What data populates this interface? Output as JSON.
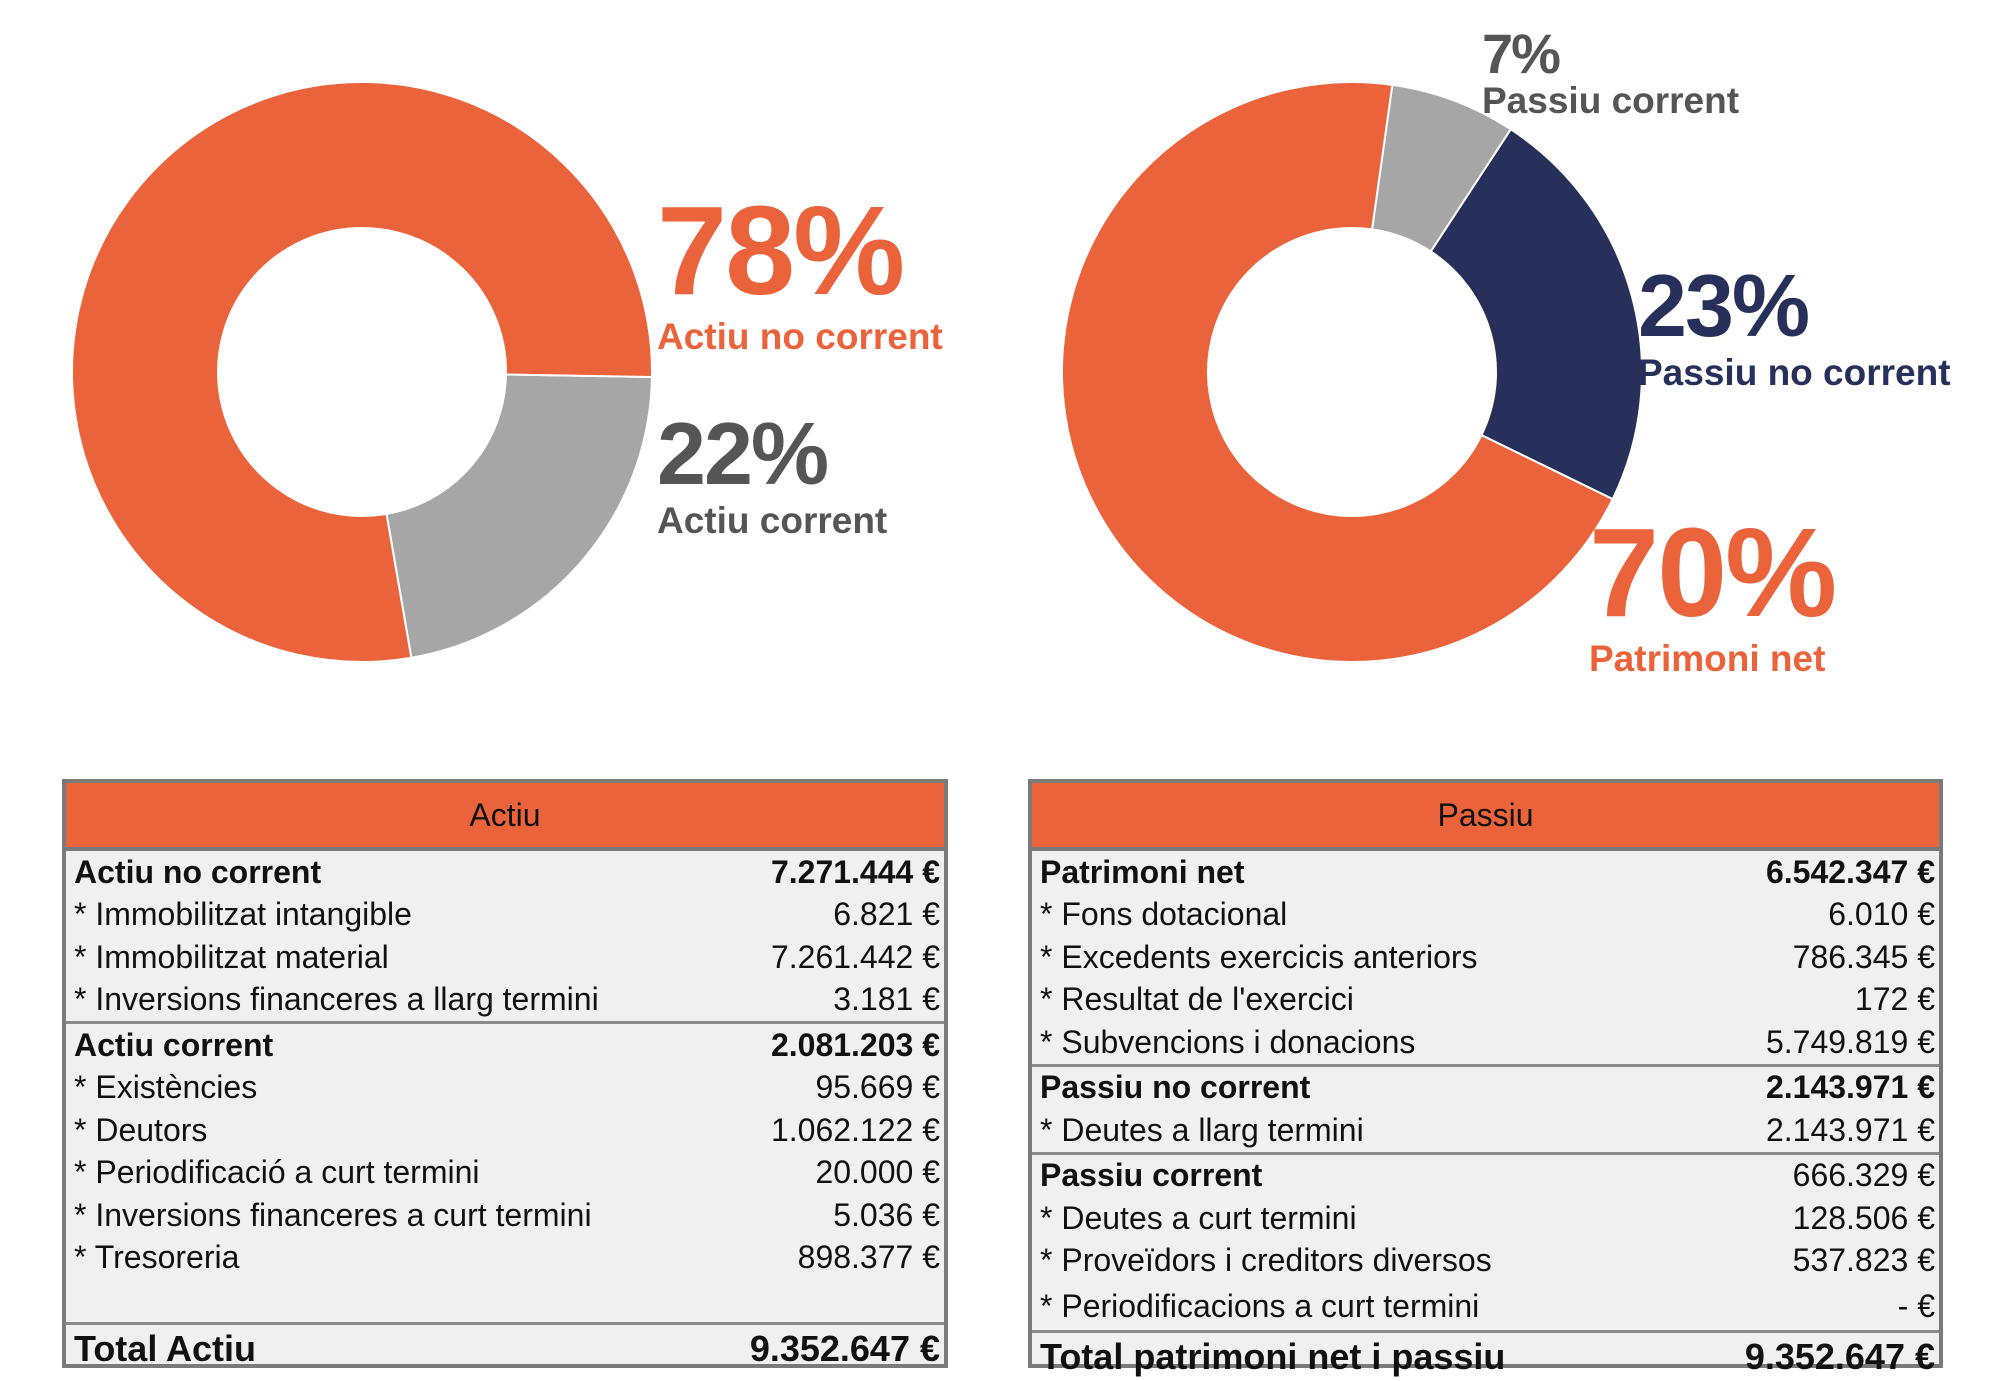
{
  "chart_data": [
    {
      "type": "pie",
      "categories": [
        "Actiu no corrent",
        "Actiu corrent"
      ],
      "values": [
        78,
        22
      ],
      "labels": [
        "78%",
        "22%"
      ],
      "colors": [
        "#eb633a",
        "#a6a6a6"
      ]
    },
    {
      "type": "pie",
      "categories": [
        "Passiu corrent",
        "Passiu no corrent",
        "Patrimoni net"
      ],
      "values": [
        7,
        23,
        70
      ],
      "labels": [
        "7%",
        "23%",
        "70%"
      ],
      "colors": [
        "#a6a6a6",
        "#27305a",
        "#eb633a"
      ]
    }
  ],
  "label_colors": {
    "orange": "#eb633a",
    "gray": "#555555",
    "navy": "#27305a"
  },
  "actiu": {
    "header": "Actiu",
    "groups": [
      {
        "title": "Actiu no corrent",
        "total": "7.271.444 €",
        "items": [
          {
            "label": "* Immobilitzat intangible",
            "value": "6.821 €"
          },
          {
            "label": "* Immobilitzat material",
            "value": "7.261.442 €"
          },
          {
            "label": "* Inversions financeres a llarg termini",
            "value": "3.181 €"
          }
        ]
      },
      {
        "title": "Actiu corrent",
        "total": "2.081.203 €",
        "items": [
          {
            "label": "* Existències",
            "value": "95.669 €"
          },
          {
            "label": "* Deutors",
            "value": "1.062.122 €"
          },
          {
            "label": "* Periodificació a curt termini",
            "value": "20.000 €"
          },
          {
            "label": "* Inversions financeres a curt termini",
            "value": "5.036 €"
          },
          {
            "label": "* Tresoreria",
            "value": "898.377 €"
          }
        ]
      }
    ],
    "total_label": "Total Actiu",
    "total_value": "9.352.647 €"
  },
  "passiu": {
    "header": "Passiu",
    "groups": [
      {
        "title": "Patrimoni net",
        "total": "6.542.347 €",
        "items": [
          {
            "label": "* Fons dotacional",
            "value": "6.010 €"
          },
          {
            "label": "* Excedents exercicis anteriors",
            "value": "786.345 €"
          },
          {
            "label": "* Resultat de l'exercici",
            "value": "172 €"
          },
          {
            "label": "* Subvencions i donacions",
            "value": "5.749.819 €"
          }
        ]
      },
      {
        "title": "Passiu no corrent",
        "total": "2.143.971 €",
        "items": [
          {
            "label": "* Deutes a llarg termini",
            "value": "2.143.971 €"
          }
        ]
      },
      {
        "title": "Passiu corrent",
        "total": "666.329 €",
        "items": [
          {
            "label": "* Deutes a curt termini",
            "value": "128.506 €"
          },
          {
            "label": "* Proveïdors i creditors diversos",
            "value": "537.823 €"
          },
          {
            "label": "* Periodificacions a curt termini",
            "value": "-  €"
          }
        ]
      }
    ],
    "total_label": "Total patrimoni net i passiu",
    "total_value": "9.352.647 €"
  }
}
